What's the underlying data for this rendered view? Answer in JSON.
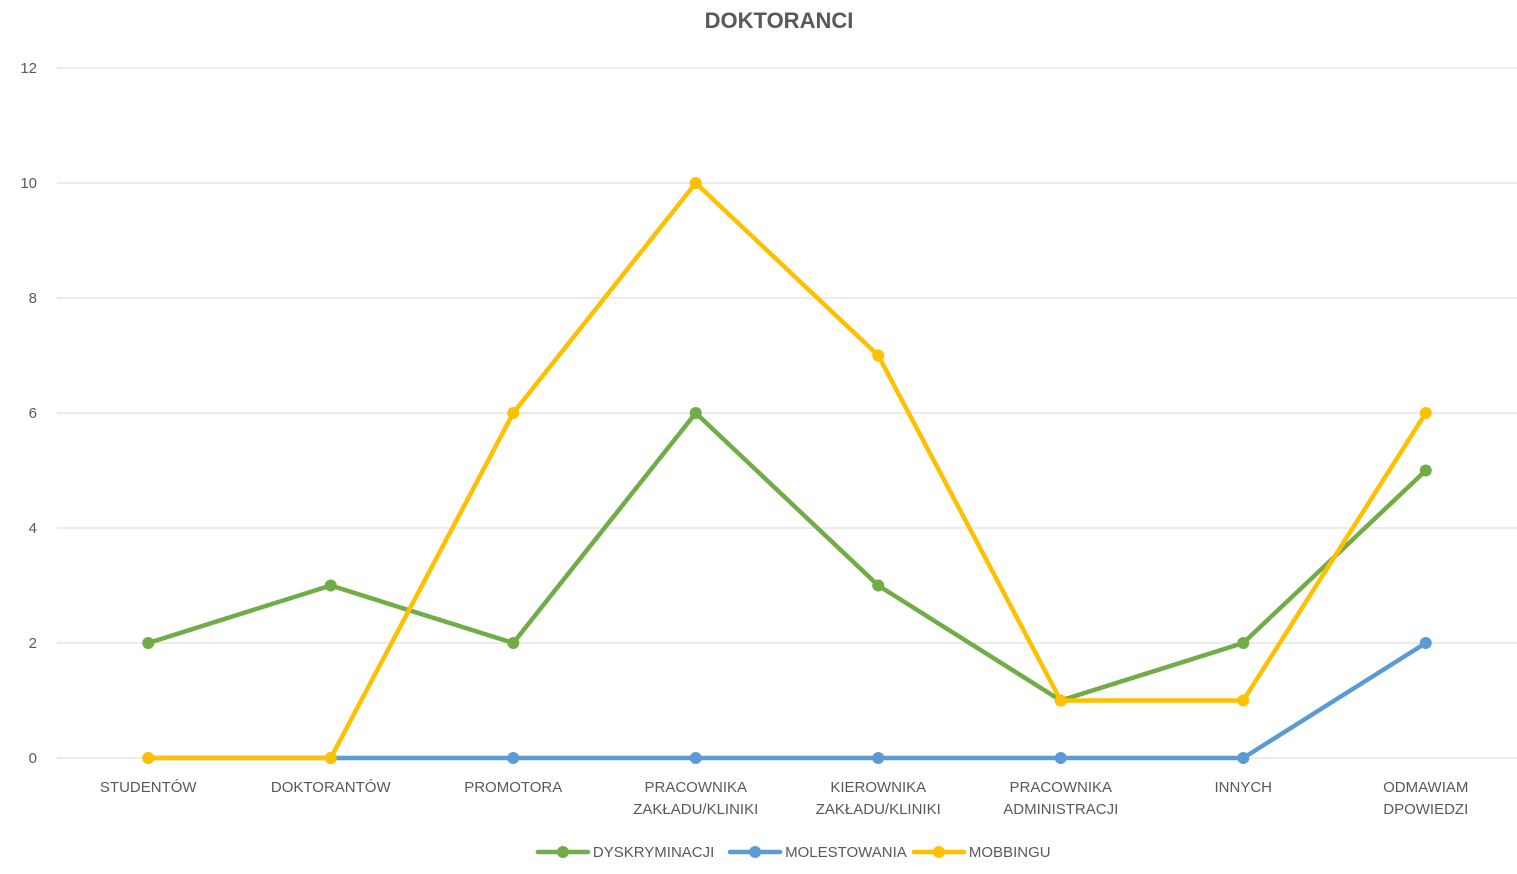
{
  "chart_data": {
    "type": "line",
    "title": "DOKTORANCI",
    "xlabel": "",
    "ylabel": "",
    "ylim": [
      0,
      12
    ],
    "yticks": [
      0,
      2,
      4,
      6,
      8,
      10,
      12
    ],
    "grid": true,
    "legend_position": "bottom",
    "categories": [
      [
        "STUDENTÓW"
      ],
      [
        "DOKTORANTÓW"
      ],
      [
        "PROMOTORA"
      ],
      [
        "PRACOWNIKA",
        "ZAKŁADU/KLINIKI"
      ],
      [
        "KIEROWNIKA",
        "ZAKŁADU/KLINIKI"
      ],
      [
        "PRACOWNIKA",
        "ADMINISTRACJI"
      ],
      [
        "INNYCH"
      ],
      [
        "ODMAWIAM",
        "DPOWIEDZI"
      ]
    ],
    "series": [
      {
        "name": "DYSKRYMINACJI",
        "color": "#70ad47",
        "values": [
          2,
          3,
          2,
          6,
          3,
          1,
          2,
          5
        ]
      },
      {
        "name": "MOLESTOWANIA",
        "color": "#5b9bd5",
        "values": [
          0,
          0,
          0,
          0,
          0,
          0,
          0,
          2
        ]
      },
      {
        "name": "MOBBINGU",
        "color": "#ffc000",
        "values": [
          0,
          0,
          6,
          10,
          7,
          1,
          1,
          6
        ]
      }
    ]
  }
}
